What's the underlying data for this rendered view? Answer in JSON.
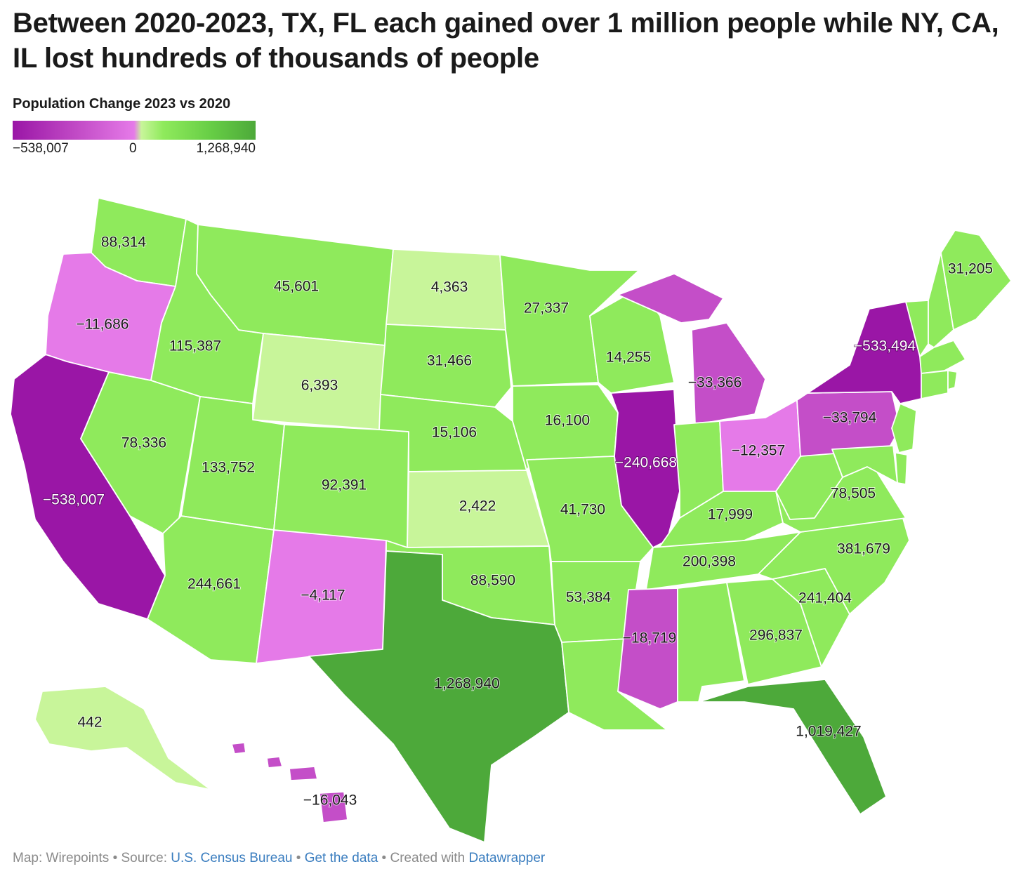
{
  "title": "Between 2020-2023, TX, FL each gained over 1 million people while NY, CA, IL lost hundreds of thousands of people",
  "legend": {
    "title": "Population Change 2023 vs 2020",
    "min_label": "−538,007",
    "mid_label": "0",
    "max_label": "1,268,940",
    "colors": {
      "strong_negative": "#9a16a6",
      "negative": "#c44ec8",
      "slight_negative": "#e57ae8",
      "slight_positive": "#c8f59a",
      "positive": "#8fea5c",
      "strong_positive": "#4da93a"
    }
  },
  "states": {
    "WA": {
      "label": "88,314",
      "value": 88314
    },
    "OR": {
      "label": "−11,686",
      "value": -11686
    },
    "CA": {
      "label": "−538,007",
      "value": -538007
    },
    "ID": {
      "label": "115,387",
      "value": 115387
    },
    "NV": {
      "label": "78,336",
      "value": 78336
    },
    "MT": {
      "label": "45,601",
      "value": 45601
    },
    "WY": {
      "label": "6,393",
      "value": 6393
    },
    "UT": {
      "label": "133,752",
      "value": 133752
    },
    "CO": {
      "label": "92,391",
      "value": 92391
    },
    "AZ": {
      "label": "244,661",
      "value": 244661
    },
    "NM": {
      "label": "−4,117",
      "value": -4117
    },
    "ND": {
      "label": "4,363",
      "value": 4363
    },
    "SD": {
      "label": "31,466",
      "value": 31466
    },
    "NE": {
      "label": "15,106",
      "value": 15106
    },
    "KS": {
      "label": "2,422",
      "value": 2422
    },
    "OK": {
      "label": "88,590",
      "value": 88590
    },
    "TX": {
      "label": "1,268,940",
      "value": 1268940
    },
    "MN": {
      "label": "27,337",
      "value": 27337
    },
    "IA": {
      "label": "16,100",
      "value": 16100
    },
    "MO": {
      "label": "41,730",
      "value": 41730
    },
    "AR": {
      "label": "53,384",
      "value": 53384
    },
    "LA": {
      "label": "",
      "value": null
    },
    "WI": {
      "label": "14,255",
      "value": 14255
    },
    "IL": {
      "label": "−240,668",
      "value": -240668
    },
    "MI": {
      "label": "−33,366",
      "value": -33366
    },
    "IN": {
      "label": "",
      "value": null
    },
    "OH": {
      "label": "−12,357",
      "value": -12357
    },
    "KY": {
      "label": "17,999",
      "value": 17999
    },
    "TN": {
      "label": "200,398",
      "value": 200398
    },
    "MS": {
      "label": "−18,719",
      "value": -18719
    },
    "AL": {
      "label": "",
      "value": null
    },
    "GA": {
      "label": "296,837",
      "value": 296837
    },
    "FL": {
      "label": "1,019,427",
      "value": 1019427
    },
    "SC": {
      "label": "241,404",
      "value": 241404
    },
    "NC": {
      "label": "381,679",
      "value": 381679
    },
    "VA": {
      "label": "78,505",
      "value": 78505
    },
    "WV": {
      "label": "",
      "value": null
    },
    "PA": {
      "label": "−33,794",
      "value": -33794
    },
    "NY": {
      "label": "−533,494",
      "value": -533494
    },
    "VT": {
      "label": "",
      "value": null
    },
    "NH": {
      "label": "",
      "value": null
    },
    "ME": {
      "label": "31,205",
      "value": 31205
    },
    "MA": {
      "label": "",
      "value": null
    },
    "CT": {
      "label": "",
      "value": null
    },
    "RI": {
      "label": "",
      "value": null
    },
    "NJ": {
      "label": "",
      "value": null
    },
    "DE": {
      "label": "",
      "value": null
    },
    "MD": {
      "label": "",
      "value": null
    },
    "AK": {
      "label": "442",
      "value": 442
    },
    "HI": {
      "label": "−16,043",
      "value": -16043
    }
  },
  "footer": {
    "map_by": "Map: Wirepoints",
    "sep": "•",
    "source_prefix": "Source:",
    "source_link": "U.S. Census Bureau",
    "data_link": "Get the data",
    "created_prefix": "Created with",
    "created_link": "Datawrapper"
  }
}
